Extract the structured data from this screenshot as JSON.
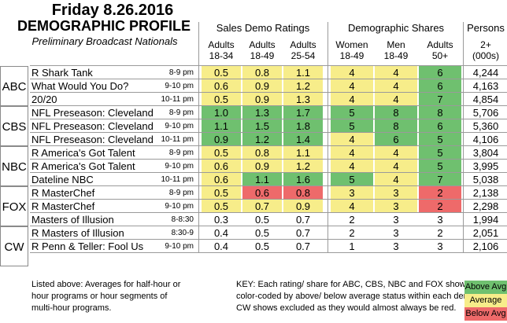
{
  "title": "Friday 8.26.2016",
  "heading": "DEMOGRAPHIC PROFILE",
  "subtitle": "Preliminary Broadcast Nationals",
  "groups": {
    "sales": "Sales Demo Ratings",
    "demo": "Demographic Shares",
    "persons": "Persons"
  },
  "columns": [
    {
      "l1": "Adults",
      "l2": "18-34"
    },
    {
      "l1": "Adults",
      "l2": "18-49"
    },
    {
      "l1": "Adults",
      "l2": "25-54"
    },
    {
      "l1": "Women",
      "l2": "18-49"
    },
    {
      "l1": "Men",
      "l2": "18-49"
    },
    {
      "l1": "Adults",
      "l2": "50+"
    },
    {
      "l1": "2+",
      "l2": "(000s)"
    }
  ],
  "networks": [
    "ABC",
    "CBS",
    "NBC",
    "FOX",
    "CW"
  ],
  "rows": [
    {
      "show": "R Shark Tank",
      "time": "8-9 pm",
      "vals": [
        "0.5",
        "0.8",
        "1.1",
        "4",
        "4",
        "6",
        "4,244"
      ],
      "colors": [
        "y",
        "y",
        "y",
        "y",
        "y",
        "g",
        ""
      ]
    },
    {
      "show": "What Would You Do?",
      "time": "9-10 pm",
      "vals": [
        "0.6",
        "0.9",
        "1.2",
        "4",
        "4",
        "6",
        "4,163"
      ],
      "colors": [
        "y",
        "y",
        "y",
        "y",
        "y",
        "g",
        ""
      ]
    },
    {
      "show": "20/20",
      "time": "10-11 pm",
      "vals": [
        "0.5",
        "0.9",
        "1.3",
        "4",
        "4",
        "7",
        "4,854"
      ],
      "colors": [
        "y",
        "y",
        "y",
        "y",
        "y",
        "g",
        ""
      ]
    },
    {
      "show": "NFL Preseason: Cleveland",
      "time": "8-9 pm",
      "vals": [
        "1.0",
        "1.3",
        "1.7",
        "5",
        "8",
        "8",
        "5,706"
      ],
      "colors": [
        "g",
        "g",
        "g",
        "g",
        "g",
        "g",
        ""
      ]
    },
    {
      "show": "NFL Preseason: Cleveland",
      "time": "9-10 pm",
      "vals": [
        "1.1",
        "1.5",
        "1.8",
        "5",
        "8",
        "6",
        "5,360"
      ],
      "colors": [
        "g",
        "g",
        "g",
        "g",
        "g",
        "g",
        ""
      ]
    },
    {
      "show": "NFL Preseason: Cleveland",
      "time": "10-11 pm",
      "vals": [
        "0.9",
        "1.2",
        "1.4",
        "4",
        "6",
        "5",
        "4,106"
      ],
      "colors": [
        "g",
        "g",
        "g",
        "y",
        "g",
        "g",
        ""
      ]
    },
    {
      "show": "R America's Got Talent",
      "time": "8-9 pm",
      "vals": [
        "0.5",
        "0.8",
        "1.1",
        "4",
        "4",
        "5",
        "3,804"
      ],
      "colors": [
        "y",
        "y",
        "y",
        "y",
        "y",
        "g",
        ""
      ]
    },
    {
      "show": "R America's Got Talent",
      "time": "9-10 pm",
      "vals": [
        "0.6",
        "0.9",
        "1.2",
        "4",
        "4",
        "5",
        "3,995"
      ],
      "colors": [
        "y",
        "y",
        "y",
        "y",
        "y",
        "g",
        ""
      ]
    },
    {
      "show": "Dateline NBC",
      "time": "10-11 pm",
      "vals": [
        "0.6",
        "1.1",
        "1.6",
        "5",
        "4",
        "7",
        "5,038"
      ],
      "colors": [
        "y",
        "g",
        "g",
        "g",
        "y",
        "g",
        ""
      ]
    },
    {
      "show": "R MasterChef",
      "time": "8-9 pm",
      "vals": [
        "0.5",
        "0.6",
        "0.8",
        "3",
        "3",
        "2",
        "2,138"
      ],
      "colors": [
        "y",
        "r",
        "r",
        "y",
        "y",
        "r",
        ""
      ]
    },
    {
      "show": "R MasterChef",
      "time": "9-10 pm",
      "vals": [
        "0.5",
        "0.7",
        "0.9",
        "4",
        "3",
        "2",
        "2,298"
      ],
      "colors": [
        "y",
        "y",
        "y",
        "y",
        "y",
        "r",
        ""
      ]
    },
    {
      "show": "Masters of Illusion",
      "time": "8-8:30",
      "vals": [
        "0.3",
        "0.5",
        "0.7",
        "2",
        "3",
        "3",
        "1,994"
      ],
      "colors": [
        "",
        "",
        "",
        "",
        "",
        "",
        ""
      ]
    },
    {
      "show": "R Masters of Illusion",
      "time": "8:30-9",
      "vals": [
        "0.4",
        "0.5",
        "0.7",
        "2",
        "3",
        "2",
        "2,051"
      ],
      "colors": [
        "",
        "",
        "",
        "",
        "",
        "",
        ""
      ]
    },
    {
      "show": "R Penn & Teller: Fool Us",
      "time": "9-10 pm",
      "vals": [
        "0.4",
        "0.5",
        "0.7",
        "1",
        "3",
        "3",
        "2,106"
      ],
      "colors": [
        "",
        "",
        "",
        "",
        "",
        "",
        ""
      ]
    }
  ],
  "footnote": "Listed above: Averages for half-hour or hour programs or hour segments of multi-hour programs.",
  "key": "KEY: Each rating/ share for ABC, CBS, NBC and FOX shows are color-coded by above/ below average status within each demo. CW shows excluded as they would almost always be red.",
  "legend": {
    "above": "Above Avg",
    "average": "Average",
    "below": "Below Avg"
  },
  "colors": {
    "above": "#6fc06f",
    "average": "#f7ed8a",
    "below": "#ee6a6a"
  }
}
